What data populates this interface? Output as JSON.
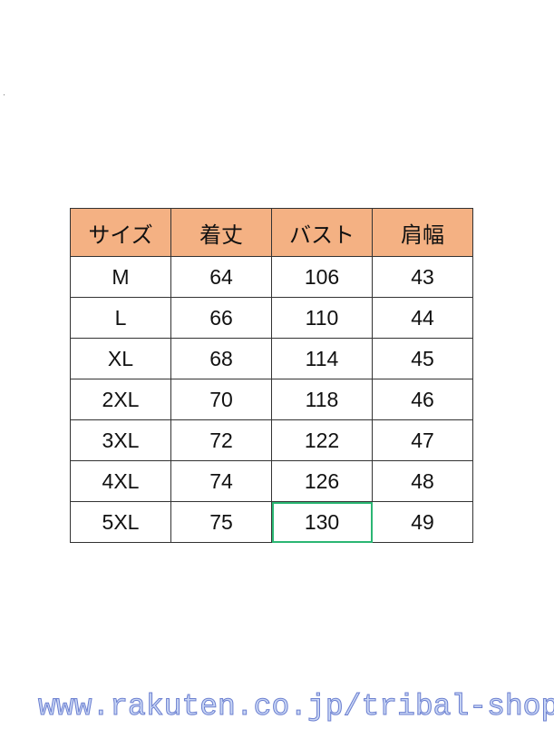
{
  "table": {
    "headers": [
      "サイズ",
      "着丈",
      "バスト",
      "肩幅"
    ],
    "header_color": "#f4b183",
    "rows": [
      [
        "M",
        "64",
        "106",
        "43"
      ],
      [
        "L",
        "66",
        "110",
        "44"
      ],
      [
        "XL",
        "68",
        "114",
        "45"
      ],
      [
        "2XL",
        "70",
        "118",
        "46"
      ],
      [
        "3XL",
        "72",
        "122",
        "47"
      ],
      [
        "4XL",
        "74",
        "126",
        "48"
      ],
      [
        "5XL",
        "75",
        "130",
        "49"
      ]
    ],
    "selected_cell_color": "#2bb673"
  },
  "watermark": "www.rakuten.co.jp/tribal-shop"
}
